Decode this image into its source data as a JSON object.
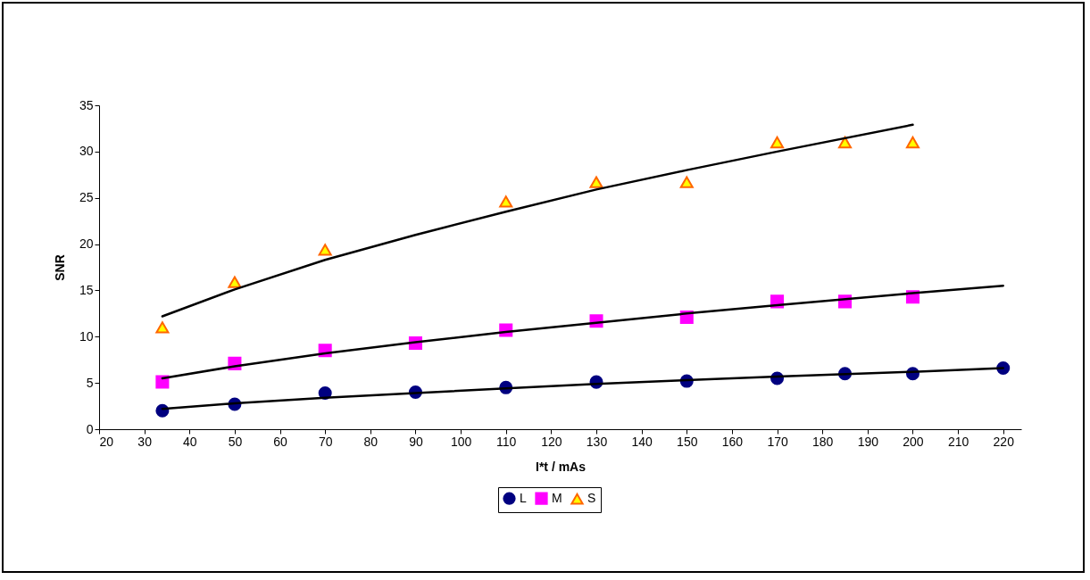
{
  "chart_data": {
    "type": "scatter",
    "xlabel": "I*t / mAs",
    "ylabel": "SNR",
    "xlim": [
      20,
      224
    ],
    "xticks": [
      20,
      30,
      40,
      50,
      60,
      70,
      80,
      90,
      100,
      110,
      120,
      130,
      140,
      150,
      160,
      170,
      180,
      190,
      200,
      210,
      220
    ],
    "ylim": [
      0,
      35
    ],
    "yticks": [
      0,
      5,
      10,
      15,
      20,
      25,
      30,
      35
    ],
    "grid": false,
    "legend": "bottom",
    "series": [
      {
        "name": "L",
        "color": "#000080",
        "marker": "circle",
        "x": [
          34,
          50,
          70,
          90,
          110,
          130,
          150,
          170,
          185,
          200,
          220
        ],
        "values": [
          2.0,
          2.7,
          3.9,
          4.0,
          4.5,
          5.1,
          5.2,
          5.5,
          6.0,
          6.0,
          6.6
        ]
      },
      {
        "name": "M",
        "color": "#ff00ff",
        "marker": "square",
        "x": [
          34,
          50,
          70,
          90,
          110,
          130,
          150,
          170,
          185,
          200
        ],
        "values": [
          5.1,
          7.1,
          8.5,
          9.3,
          10.7,
          11.7,
          12.1,
          13.8,
          13.8,
          14.3
        ]
      },
      {
        "name": "S",
        "color": "#ffff00",
        "marker": "triangle",
        "x": [
          34,
          50,
          70,
          110,
          130,
          150,
          170,
          185,
          200
        ],
        "values": [
          11.0,
          15.9,
          19.4,
          24.6,
          26.7,
          26.7,
          31.0,
          31.0,
          31.0
        ]
      },
      {
        "type": "line",
        "color": "#000000",
        "x": [
          34,
          50,
          70,
          90,
          110,
          130,
          150,
          170,
          200,
          220
        ],
        "values": [
          2.2,
          2.8,
          3.4,
          3.9,
          4.4,
          4.9,
          5.3,
          5.7,
          6.2,
          6.6
        ]
      },
      {
        "type": "line",
        "color": "#000000",
        "x": [
          34,
          50,
          70,
          90,
          110,
          130,
          150,
          170,
          200,
          220
        ],
        "values": [
          5.5,
          6.8,
          8.2,
          9.4,
          10.5,
          11.5,
          12.5,
          13.4,
          14.7,
          15.5
        ]
      },
      {
        "type": "line",
        "color": "#000000",
        "x": [
          34,
          50,
          70,
          90,
          110,
          130,
          150,
          170,
          200
        ],
        "values": [
          12.2,
          15.1,
          18.3,
          21.0,
          23.5,
          25.9,
          28.0,
          30.0,
          32.9
        ]
      }
    ]
  }
}
